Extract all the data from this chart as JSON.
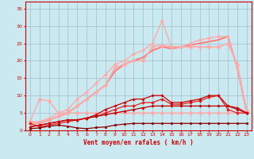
{
  "xlabel": "Vent moyen/en rafales ( km/h )",
  "xlim": [
    -0.5,
    23.5
  ],
  "ylim": [
    0,
    37
  ],
  "xticks": [
    0,
    1,
    2,
    3,
    4,
    5,
    6,
    7,
    8,
    9,
    10,
    11,
    12,
    13,
    14,
    15,
    16,
    17,
    18,
    19,
    20,
    21,
    22,
    23
  ],
  "yticks": [
    0,
    5,
    10,
    15,
    20,
    25,
    30,
    35
  ],
  "background_color": "#cbe9f0",
  "grid_color": "#9fbfcf",
  "lines": [
    {
      "x": [
        0,
        1,
        2,
        3,
        4,
        5,
        6,
        7,
        8,
        9,
        10,
        11,
        12,
        13,
        14,
        15,
        16,
        17,
        18,
        19,
        20,
        21,
        22,
        23
      ],
      "y": [
        0.5,
        0.7,
        1.2,
        1.5,
        1.2,
        0.7,
        0.5,
        0.8,
        1,
        1.5,
        1.8,
        2,
        2,
        2,
        2,
        2,
        2,
        2,
        2,
        2,
        2,
        2,
        2,
        2
      ],
      "color": "#880000",
      "linewidth": 0.9,
      "marker": "s",
      "markersize": 1.5,
      "zorder": 6
    },
    {
      "x": [
        0,
        1,
        2,
        3,
        4,
        5,
        6,
        7,
        8,
        9,
        10,
        11,
        12,
        13,
        14,
        15,
        16,
        17,
        18,
        19,
        20,
        21,
        22,
        23
      ],
      "y": [
        1,
        1.5,
        2,
        2.5,
        3,
        3,
        3.5,
        4,
        4.5,
        5,
        5.5,
        6,
        6.5,
        7,
        7,
        7,
        7,
        7,
        7,
        7,
        7,
        7,
        6.5,
        5
      ],
      "color": "#bb0000",
      "linewidth": 0.9,
      "marker": "P",
      "markersize": 2,
      "zorder": 5
    },
    {
      "x": [
        0,
        1,
        2,
        3,
        4,
        5,
        6,
        7,
        8,
        9,
        10,
        11,
        12,
        13,
        14,
        15,
        16,
        17,
        18,
        19,
        20,
        21,
        22,
        23
      ],
      "y": [
        1,
        1.5,
        2,
        2.5,
        3,
        3,
        3.5,
        4.5,
        6,
        7,
        8,
        9,
        9,
        10,
        10,
        8,
        8,
        8.5,
        9,
        10,
        10,
        7,
        6,
        5
      ],
      "color": "#cc0000",
      "linewidth": 0.9,
      "marker": "P",
      "markersize": 2,
      "zorder": 5
    },
    {
      "x": [
        0,
        1,
        2,
        3,
        4,
        5,
        6,
        7,
        8,
        9,
        10,
        11,
        12,
        13,
        14,
        15,
        16,
        17,
        18,
        19,
        20,
        21,
        22,
        23
      ],
      "y": [
        2,
        1,
        1.5,
        2,
        2.5,
        3,
        3.5,
        4,
        5,
        6,
        7,
        7,
        8,
        8,
        9,
        7.5,
        7.5,
        8,
        8.5,
        9.5,
        10,
        6,
        5,
        5
      ],
      "color": "#dd2222",
      "linewidth": 0.9,
      "marker": "D",
      "markersize": 1.8,
      "zorder": 4
    },
    {
      "x": [
        0,
        1,
        2,
        3,
        4,
        5,
        6,
        7,
        8,
        9,
        10,
        11,
        12,
        13,
        14,
        15,
        16,
        17,
        18,
        19,
        20,
        21,
        22,
        23
      ],
      "y": [
        2.5,
        9,
        8.5,
        5,
        5,
        5,
        5,
        5,
        5,
        5,
        5,
        5,
        5,
        5,
        5,
        5,
        5,
        5,
        5,
        5,
        5,
        5,
        5,
        5
      ],
      "color": "#ffaaaa",
      "linewidth": 1.0,
      "marker": "D",
      "markersize": 2.5,
      "zorder": 3
    },
    {
      "x": [
        0,
        1,
        2,
        3,
        4,
        5,
        6,
        7,
        8,
        9,
        10,
        11,
        12,
        13,
        14,
        15,
        16,
        17,
        18,
        19,
        20,
        21,
        22,
        23
      ],
      "y": [
        2,
        2,
        3,
        4,
        5,
        7,
        9,
        11,
        13,
        18,
        19,
        20,
        20,
        24,
        24.5,
        24,
        24,
        24,
        24,
        24,
        24,
        25,
        19,
        5.5
      ],
      "color": "#ffaaaa",
      "linewidth": 1.2,
      "marker": "D",
      "markersize": 2.5,
      "zorder": 3
    },
    {
      "x": [
        0,
        1,
        2,
        3,
        4,
        5,
        6,
        7,
        8,
        9,
        10,
        11,
        12,
        13,
        14,
        15,
        16,
        17,
        18,
        19,
        20,
        21,
        22,
        23
      ],
      "y": [
        2.5,
        2.5,
        3.5,
        5,
        6,
        9,
        11,
        13.5,
        16,
        19,
        20,
        22,
        23,
        25,
        31.5,
        24,
        24,
        25,
        26,
        26.5,
        27,
        27,
        18,
        5
      ],
      "color": "#ffaaaa",
      "linewidth": 1.0,
      "marker": "P",
      "markersize": 2.5,
      "zorder": 3
    },
    {
      "x": [
        0,
        1,
        2,
        3,
        4,
        5,
        6,
        7,
        8,
        9,
        10,
        11,
        12,
        13,
        14,
        15,
        16,
        17,
        18,
        19,
        20,
        21,
        22,
        23
      ],
      "y": [
        2,
        2,
        3,
        4,
        5,
        7,
        9,
        11,
        13,
        17,
        19,
        20,
        21,
        23,
        24,
        23.5,
        24,
        24.5,
        25,
        25.5,
        26,
        27,
        18,
        5
      ],
      "color": "#ff7777",
      "linewidth": 1.3,
      "marker": null,
      "markersize": 0,
      "zorder": 2
    }
  ]
}
